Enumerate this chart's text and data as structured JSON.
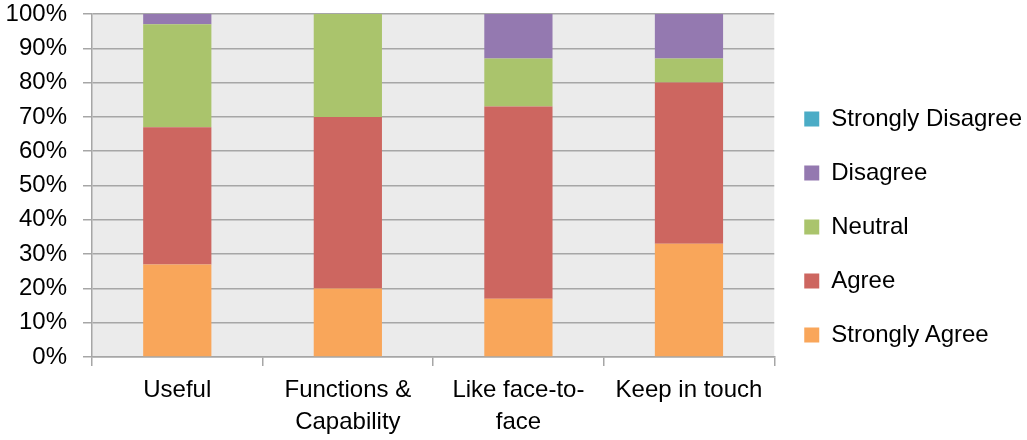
{
  "chart_data": {
    "type": "bar",
    "stacked": true,
    "categories": [
      "Useful",
      "Functions & Capability",
      "Like face-to-face",
      "Keep in touch"
    ],
    "series": [
      {
        "name": "Strongly Agree",
        "color": "#f9a65a",
        "values": [
          27,
          20,
          17,
          33
        ]
      },
      {
        "name": "Agree",
        "color": "#cd6660",
        "values": [
          40,
          50,
          56,
          47
        ]
      },
      {
        "name": "Neutral",
        "color": "#aac46c",
        "values": [
          30,
          30,
          14,
          7
        ]
      },
      {
        "name": "Disagree",
        "color": "#9479b0",
        "values": [
          3,
          0,
          13,
          13
        ]
      },
      {
        "name": "Strongly Disagree",
        "color": "#4bacc6",
        "values": [
          0,
          0,
          0,
          0
        ]
      }
    ],
    "ylim": [
      0,
      100
    ],
    "yticks": [
      {
        "value": 0,
        "label": "0%"
      },
      {
        "value": 10,
        "label": "10%"
      },
      {
        "value": 20,
        "label": "20%"
      },
      {
        "value": 30,
        "label": "30%"
      },
      {
        "value": 40,
        "label": "40%"
      },
      {
        "value": 50,
        "label": "50%"
      },
      {
        "value": 60,
        "label": "60%"
      },
      {
        "value": 70,
        "label": "70%"
      },
      {
        "value": 80,
        "label": "80%"
      },
      {
        "value": 90,
        "label": "90%"
      },
      {
        "value": 100,
        "label": "100%"
      }
    ],
    "grid": "y",
    "legend": "right"
  }
}
